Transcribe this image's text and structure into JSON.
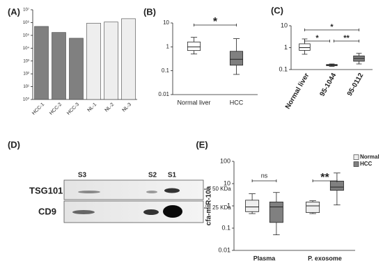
{
  "chart_data": [
    {
      "type": "bar",
      "label": "(A)",
      "log": true,
      "categories": [
        "HCC-1",
        "HCC-2",
        "HCC-3",
        "NL-1",
        "NL-2",
        "NL-3"
      ],
      "values": [
        500000,
        170000,
        60000,
        900000,
        1100000,
        2000000
      ],
      "colors": [
        "#808080",
        "#808080",
        "#808080",
        "#eeeeee",
        "#eeeeee",
        "#eeeeee"
      ],
      "ylim": [
        1,
        10000000
      ],
      "yticks": [
        {
          "value": 1,
          "label": "10⁰"
        },
        {
          "value": 10,
          "label": "10¹"
        },
        {
          "value": 100,
          "label": "10²"
        },
        {
          "value": 1000,
          "label": "10³"
        },
        {
          "value": 10000,
          "label": "10⁴"
        },
        {
          "value": 100000,
          "label": "10⁵"
        },
        {
          "value": 1000000,
          "label": "10⁶"
        },
        {
          "value": 10000000,
          "label": "10⁷"
        }
      ]
    },
    {
      "type": "box",
      "label": "(B)",
      "log": true,
      "categories": [
        "Normal liver",
        "HCC"
      ],
      "values": [
        [
          0.5,
          0.7,
          1.0,
          1.6,
          2.5
        ],
        [
          0.07,
          0.17,
          0.3,
          0.65,
          2.2
        ]
      ],
      "colors": [
        "#ffffff",
        "#808080"
      ],
      "ylim": [
        0.01,
        10
      ],
      "yticks": [
        0.01,
        0.1,
        1,
        10
      ],
      "annotations": [
        "*"
      ]
    },
    {
      "type": "box",
      "label": "(C)",
      "log": true,
      "categories": [
        "Normal liver",
        "95-1044",
        "95-0112"
      ],
      "values": [
        [
          0.5,
          0.75,
          1.0,
          1.5,
          2.5
        ],
        [
          0.14,
          0.15,
          0.16,
          0.17,
          0.18
        ],
        [
          0.18,
          0.24,
          0.32,
          0.42,
          0.55
        ]
      ],
      "colors": [
        "#ffffff",
        "#808080",
        "#808080"
      ],
      "ylim": [
        0.1,
        10
      ],
      "yticks": [
        0.1,
        1,
        10
      ],
      "annotations": [
        "*",
        "*",
        "**"
      ]
    },
    {
      "type": "blot",
      "label": "(D)",
      "rows": [
        "TSG101",
        "CD9"
      ],
      "lanes": [
        "S3",
        "S2",
        "S1"
      ],
      "markers": [
        "50 KDa",
        "25 KDa"
      ]
    },
    {
      "type": "box",
      "label": "(E)",
      "log": true,
      "y_label": "cfa-miR-10a",
      "categories": [
        "Plasma",
        "P. exosome"
      ],
      "series": [
        {
          "name": "Normal",
          "color": "#eeeeee",
          "values": [
            [
              0.45,
              0.55,
              0.9,
              1.8,
              3.5
            ],
            [
              0.45,
              0.5,
              1.0,
              1.5,
              1.7
            ]
          ]
        },
        {
          "name": "HCC",
          "color": "#808080",
          "values": [
            [
              0.05,
              0.18,
              0.9,
              1.5,
              4
            ],
            [
              1.1,
              5,
              7,
              13,
              30
            ]
          ]
        }
      ],
      "ylim": [
        0.01,
        100
      ],
      "yticks": [
        0.01,
        0.1,
        1,
        10,
        100
      ],
      "annotations": [
        "ns",
        "**"
      ]
    }
  ]
}
